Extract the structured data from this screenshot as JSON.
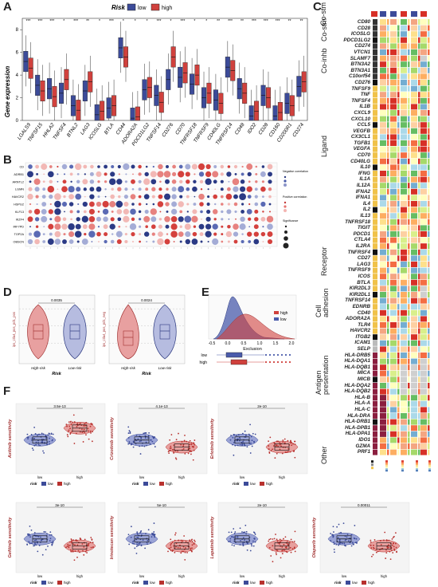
{
  "panels": {
    "A": "A",
    "B": "B",
    "C": "C",
    "D": "D",
    "E": "E",
    "F": "F"
  },
  "panelA": {
    "legend_title": "Risk",
    "legend_low": "low",
    "legend_high": "high",
    "ylabel": "Gene expression",
    "colors": {
      "low": "#3c4b99",
      "high": "#d0413d"
    },
    "genes": [
      "LGALS9",
      "TNFSF15",
      "HHLA2",
      "TNFSF4",
      "BTNL2",
      "LAG3",
      "ICOSLG",
      "BTLA",
      "CD44",
      "ADORA2A",
      "PDCD1LG2",
      "TNFSF14",
      "CD276",
      "CD70",
      "TNFRSF18",
      "TNFRSF9",
      "CD40LG",
      "TNFRSF14",
      "CD48",
      "IDO2",
      "CD28",
      "CD160",
      "CD200R1",
      "CD274"
    ],
    "stars": [
      "***",
      "***",
      "***",
      "*",
      "***",
      "**",
      "*",
      "***",
      "*",
      "*",
      "*",
      "***",
      "*",
      "***",
      "*",
      "*",
      "**",
      "***",
      "**",
      "***",
      "***",
      "***",
      "**",
      "**"
    ],
    "yticks": [
      "0",
      "2",
      "4",
      "6",
      "8"
    ]
  },
  "chart_data": {
    "type": "box",
    "ylabel": "Gene expression",
    "ylim": [
      0,
      9
    ],
    "categories": [
      "LGALS9",
      "TNFSF15",
      "HHLA2",
      "TNFSF4",
      "BTNL2",
      "LAG3",
      "ICOSLG",
      "BTLA",
      "CD44",
      "ADORA2A",
      "PDCD1LG2",
      "TNFSF14",
      "CD276",
      "CD70",
      "TNFRSF18",
      "TNFRSF9",
      "CD40LG",
      "TNFRSF14",
      "CD48",
      "IDO2",
      "CD28",
      "CD160",
      "CD200R1",
      "CD274"
    ],
    "series": [
      {
        "name": "low",
        "medians": [
          5.2,
          3.1,
          2.8,
          2.4,
          1.3,
          2.6,
          0.5,
          1.1,
          6.4,
          0.2,
          2.7,
          2.2,
          3.6,
          3.8,
          3.2,
          2.0,
          1.8,
          4.7,
          2.8,
          0.4,
          2.2,
          0.4,
          1.5,
          3.0
        ]
      },
      {
        "name": "high",
        "medians": [
          4.6,
          2.6,
          2.1,
          3.6,
          0.9,
          3.4,
          0.8,
          1.3,
          5.6,
          0.3,
          2.9,
          1.6,
          5.6,
          4.2,
          4.0,
          2.4,
          1.5,
          4.4,
          2.4,
          0.8,
          2.0,
          0.7,
          1.3,
          3.4
        ]
      }
    ]
  },
  "panelB": {
    "rows": [
      "CD",
      "ADRB1",
      "ARNTL2",
      "LGMN",
      "HAVCR2",
      "HSPG2",
      "KLF13",
      "IKZF4",
      "IRF7PD",
      "TOP2A",
      "OBSCN"
    ],
    "legend": [
      "Negative correlation",
      "Positive correlation",
      "Significance"
    ]
  },
  "panelC": {
    "groups": [
      "Co-stm",
      "Co-inhb",
      "Ligand",
      "Receptor",
      "Cell adhesion",
      "Antigen presentation",
      "Other"
    ],
    "genes": [
      "CD80",
      "CD28",
      "ICOSLG",
      "PDCD1LG2",
      "CD274",
      "VTCN1",
      "SLAMF7",
      "BTN3A2",
      "BTN3A1",
      "C10orf54",
      "CD276",
      "TNFSF9",
      "TNF",
      "TNFSF4",
      "IL1B",
      "CXCL9",
      "CXCL10",
      "CCL5",
      "VEGFB",
      "CX3CL1",
      "TGFB1",
      "VEGFA",
      "CD70",
      "CD40LG",
      "IL10",
      "IFNG",
      "IL1A",
      "IL12A",
      "IFNA2",
      "IFNA1",
      "IL4",
      "IL2",
      "IL13",
      "TNFRSF18",
      "TIGIT",
      "PDCD1",
      "CTLA4",
      "IL2RA",
      "TNFRSF4",
      "CD27",
      "LAG3",
      "TNFRSF9",
      "ICOS",
      "BTLA",
      "KIR2DL3",
      "KIR2DL1",
      "TNFRSF14",
      "EDNRB",
      "CD40",
      "ADORA2A",
      "TLR4",
      "HAVCR2",
      "ITGB2",
      "ICAM1",
      "SELP",
      "HLA-DRB5",
      "HLA-DQA1",
      "HLA-DQB1",
      "MICA",
      "MICB",
      "HLA-DQA2",
      "HLA-DQB2",
      "HLA-B",
      "HLA-A",
      "HLA-C",
      "HLA-DRA",
      "HLA-DRB1",
      "HLA-DPB1",
      "HLA-DPA1",
      "IDO1",
      "GZMA",
      "PRF1"
    ],
    "legend": [
      "Immune",
      "mRNA Expression",
      "Expression vs. Methylation",
      "Amplification Frequency",
      "Deletion Frequency"
    ]
  },
  "panelD": {
    "plots": [
      {
        "ylabel": "ips_ctla4_pos_pd1_pos",
        "pval": "0.0035",
        "x": [
          "High-risk",
          "Low-risk"
        ],
        "xlabel": "Risk"
      },
      {
        "ylabel": "ips_ctla4_pos_pd1_neg",
        "pval": "0.0024",
        "x": [
          "High-risk",
          "Low-risk"
        ],
        "xlabel": "Risk"
      }
    ]
  },
  "panelE": {
    "legend": [
      "high",
      "low"
    ],
    "xlabel": "Exclusion",
    "xticks": [
      "-0.5",
      "0.0",
      "0.5",
      "1.0",
      "1.5",
      "2.0"
    ],
    "rows": [
      "low",
      "high"
    ]
  },
  "panelF": {
    "plots": [
      {
        "ylabel": "Axitinib sensitivity",
        "pval": "3.5e-13"
      },
      {
        "ylabel": "Crizotinib sensitivity",
        "pval": "4.1e-13"
      },
      {
        "ylabel": "Erlotinib sensitivity",
        "pval": "2e-10"
      },
      {
        "ylabel": "Gefitinib sensitivity",
        "pval": "3e-10"
      },
      {
        "ylabel": "Irinotecan sensitivity",
        "pval": "5e-10"
      },
      {
        "ylabel": "Lapatinib sensitivity",
        "pval": "2e-10"
      },
      {
        "ylabel": "Olaparib sensitivity",
        "pval": "0.00011"
      }
    ],
    "risk_label": "risk",
    "low": "low",
    "high": "high",
    "x": [
      "low",
      "high"
    ]
  }
}
